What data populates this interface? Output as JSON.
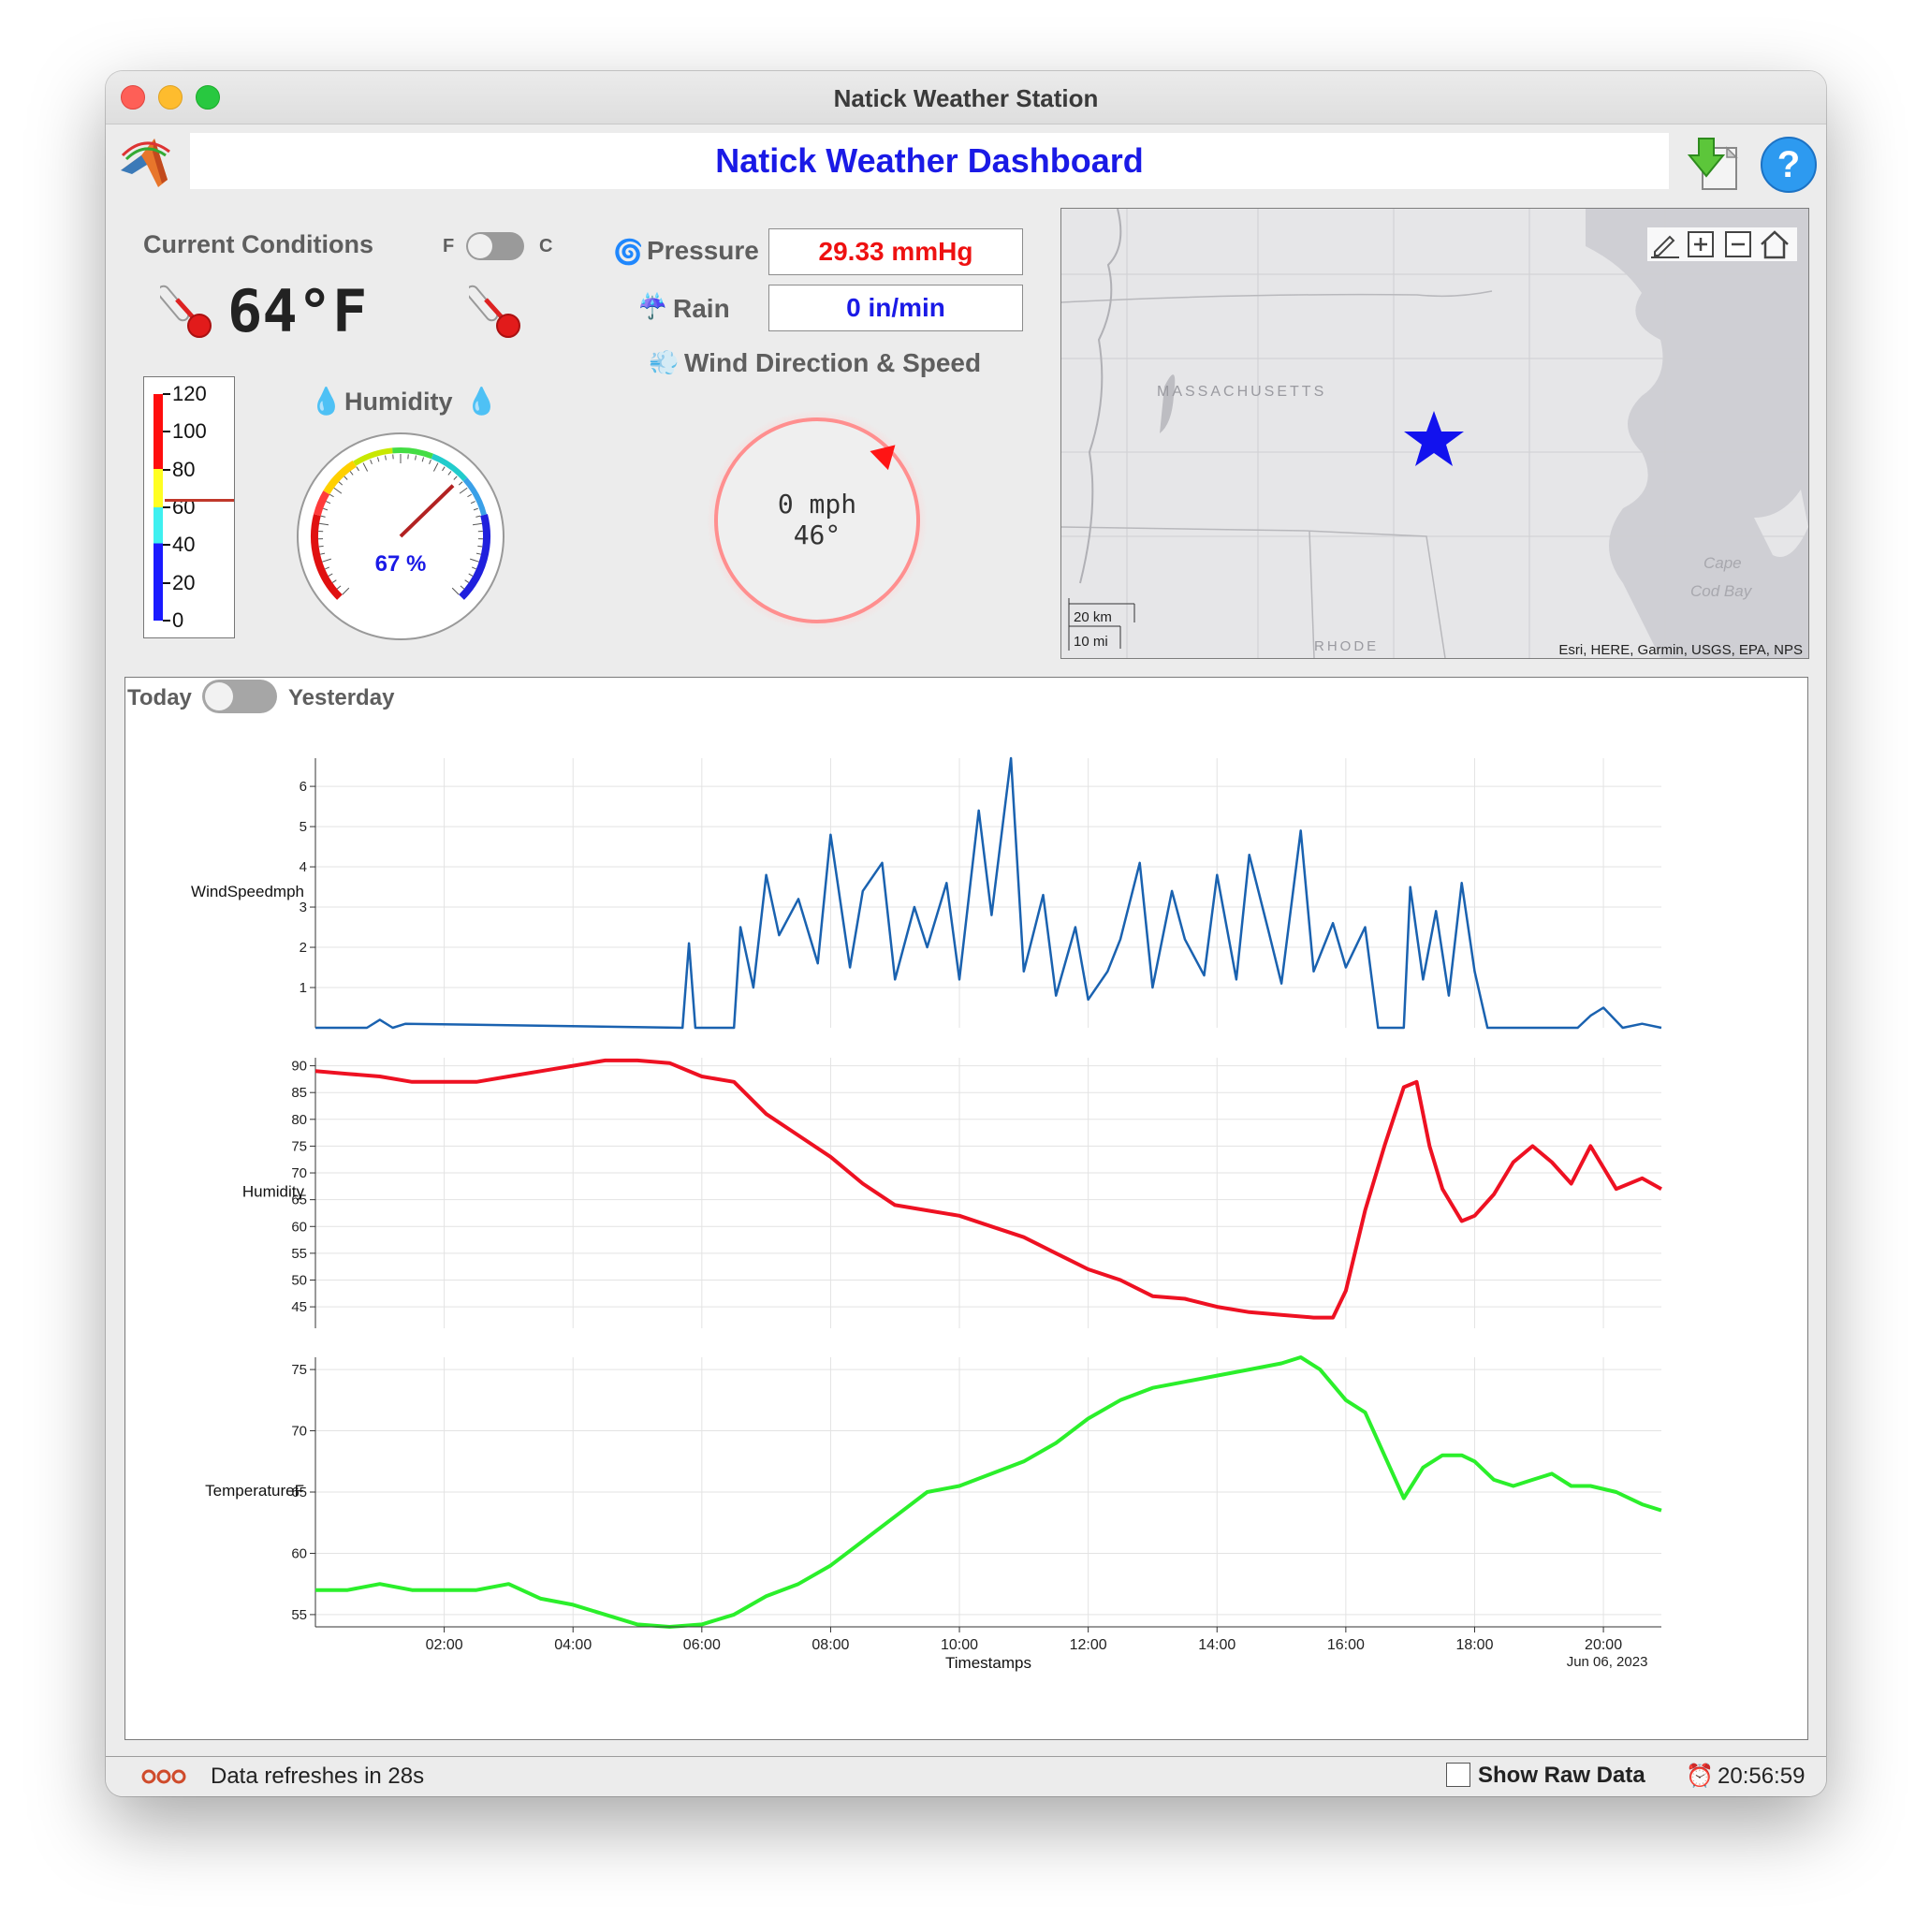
{
  "window": {
    "title": "Natick Weather Station"
  },
  "header": {
    "banner": "Natick Weather Dashboard"
  },
  "conditions": {
    "title": "Current Conditions",
    "unit_f": "F",
    "unit_c": "C",
    "temperature": "64°F"
  },
  "thermometer": {
    "ticks": [
      "120",
      "100",
      "80",
      "60",
      "40",
      "20",
      "0"
    ],
    "value": 64
  },
  "humidity": {
    "title": "Humidity",
    "value_label": "67 %",
    "value": 67
  },
  "pressure": {
    "label": "Pressure",
    "value": "29.33 mmHg"
  },
  "rain": {
    "label": "Rain",
    "value": "0 in/min"
  },
  "wind": {
    "label": "Wind Direction & Speed",
    "speed": "0 mph",
    "direction": "46°",
    "direction_deg": 46
  },
  "map": {
    "labels": {
      "state": "MASSACHUSETTS",
      "rhode": "RHODE",
      "cape1": "Cape",
      "cape2": "Cod Bay"
    },
    "scale_km": "20 km",
    "scale_mi": "10 mi",
    "attribution": "Esri, HERE, Garmin, USGS, EPA, NPS",
    "toolbar": [
      "edit-icon",
      "zoom-in-icon",
      "zoom-out-icon",
      "home-icon"
    ]
  },
  "day_toggle": {
    "left": "Today",
    "right": "Yesterday"
  },
  "chart_data": [
    {
      "type": "line",
      "ylabel": "WindSpeedmph",
      "ylim": [
        0,
        6.7
      ],
      "yticks": [
        1,
        2,
        3,
        4,
        5,
        6
      ],
      "color": "#1a62b0",
      "x_hours": [
        0,
        0.8,
        1.0,
        1.2,
        1.4,
        5.7,
        5.8,
        5.9,
        6.5,
        6.6,
        6.8,
        7.0,
        7.2,
        7.5,
        7.8,
        8.0,
        8.3,
        8.5,
        8.8,
        9.0,
        9.3,
        9.5,
        9.8,
        10.0,
        10.3,
        10.5,
        10.8,
        11.0,
        11.3,
        11.5,
        11.8,
        12.0,
        12.3,
        12.5,
        12.8,
        13.0,
        13.3,
        13.5,
        13.8,
        14.0,
        14.3,
        14.5,
        14.8,
        15.0,
        15.3,
        15.5,
        15.8,
        16.0,
        16.3,
        16.5,
        16.9,
        17.0,
        17.2,
        17.4,
        17.6,
        17.8,
        18.0,
        18.2,
        18.4,
        19.0,
        19.6,
        19.8,
        20.0,
        20.3,
        20.6,
        20.9
      ],
      "values": [
        0,
        0,
        0.2,
        0,
        0.1,
        0,
        2.1,
        0,
        0,
        2.5,
        1.0,
        3.8,
        2.3,
        3.2,
        1.6,
        4.8,
        1.5,
        3.4,
        4.1,
        1.2,
        3.0,
        2.0,
        3.6,
        1.2,
        5.4,
        2.8,
        6.7,
        1.4,
        3.3,
        0.8,
        2.5,
        0.7,
        1.4,
        2.2,
        4.1,
        1.0,
        3.4,
        2.2,
        1.3,
        3.8,
        1.2,
        4.3,
        2.4,
        1.1,
        4.9,
        1.4,
        2.6,
        1.5,
        2.5,
        0,
        0,
        3.5,
        1.2,
        2.9,
        0.8,
        3.6,
        1.4,
        0,
        0,
        0,
        0,
        0.3,
        0.5,
        0,
        0.1,
        0
      ]
    },
    {
      "type": "line",
      "ylabel": "Humidity",
      "ylim": [
        41,
        91.5
      ],
      "yticks": [
        45,
        50,
        55,
        60,
        65,
        70,
        75,
        80,
        85,
        90
      ],
      "color": "#ee1122",
      "x_hours": [
        0,
        0.5,
        1.0,
        1.5,
        2.0,
        2.5,
        3.0,
        3.5,
        4.0,
        4.5,
        5.0,
        5.5,
        6.0,
        6.5,
        7.0,
        7.5,
        8.0,
        8.5,
        9.0,
        9.5,
        10.0,
        10.5,
        11.0,
        11.5,
        12.0,
        12.5,
        13.0,
        13.5,
        14.0,
        14.5,
        15.0,
        15.5,
        15.8,
        16.0,
        16.3,
        16.6,
        16.9,
        17.1,
        17.3,
        17.5,
        17.8,
        18.0,
        18.3,
        18.6,
        18.9,
        19.2,
        19.5,
        19.8,
        20.2,
        20.6,
        20.9
      ],
      "values": [
        89,
        88.5,
        88,
        87,
        87,
        87,
        88,
        89,
        90,
        91,
        91,
        90.5,
        88,
        87,
        81,
        77,
        73,
        68,
        64,
        63,
        62,
        60,
        58,
        55,
        52,
        50,
        47,
        46.5,
        45,
        44,
        43.5,
        43,
        43,
        48,
        63,
        75,
        86,
        87,
        75,
        67,
        61,
        62,
        66,
        72,
        75,
        72,
        68,
        75,
        67,
        69,
        67
      ]
    },
    {
      "type": "line",
      "ylabel": "TemperatureF",
      "xlabel": "Timestamps",
      "ylim": [
        54,
        76
      ],
      "yticks": [
        55,
        60,
        65,
        70,
        75
      ],
      "color": "#2bef2b",
      "x_hours": [
        0,
        0.5,
        1.0,
        1.5,
        2.0,
        2.5,
        3.0,
        3.5,
        4.0,
        4.5,
        5.0,
        5.5,
        6.0,
        6.5,
        7.0,
        7.5,
        8.0,
        8.5,
        9.0,
        9.5,
        10.0,
        10.5,
        11.0,
        11.5,
        12.0,
        12.5,
        13.0,
        13.5,
        14.0,
        14.5,
        15.0,
        15.3,
        15.6,
        16.0,
        16.3,
        16.6,
        16.9,
        17.2,
        17.5,
        17.8,
        18.0,
        18.3,
        18.6,
        18.9,
        19.2,
        19.5,
        19.8,
        20.2,
        20.6,
        20.9
      ],
      "values": [
        57,
        57,
        57.5,
        57,
        57,
        57,
        57.5,
        56.3,
        55.8,
        55,
        54.2,
        54,
        54.2,
        55,
        56.5,
        57.5,
        59,
        61,
        63,
        65,
        65.5,
        66.5,
        67.5,
        69,
        71,
        72.5,
        73.5,
        74,
        74.5,
        75,
        75.5,
        76,
        75,
        72.5,
        71.5,
        68,
        64.5,
        67,
        68,
        68,
        67.5,
        66,
        65.5,
        66,
        66.5,
        65.5,
        65.5,
        65,
        64,
        63.5
      ],
      "xticks": [
        "02:00",
        "04:00",
        "06:00",
        "08:00",
        "10:00",
        "12:00",
        "14:00",
        "16:00",
        "18:00",
        "20:00"
      ],
      "date_label": "Jun 06, 2023"
    }
  ],
  "status": {
    "refresh": "Data refreshes in 28s",
    "raw_data": "Show Raw Data",
    "clock": "20:56:59"
  }
}
